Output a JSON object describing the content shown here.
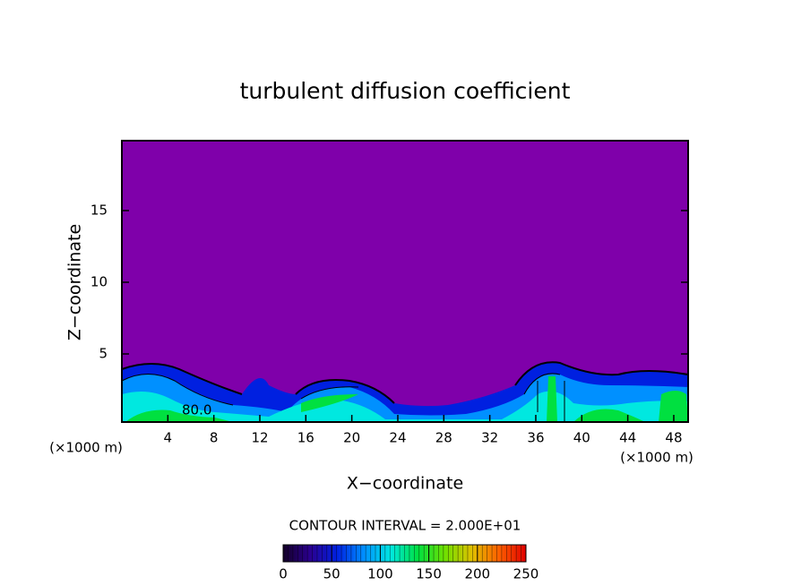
{
  "chart_data": {
    "type": "contour",
    "title": "turbulent diffusion coefficient",
    "xlabel": "X−coordinate",
    "ylabel": "Z−coordinate",
    "x_unit_left": "(×1000 m)",
    "x_unit_right": "(×1000 m)",
    "xlim": [
      0,
      49.25
    ],
    "xticks": [
      4,
      8,
      12,
      16,
      20,
      24,
      28,
      32,
      36,
      40,
      44,
      48
    ],
    "ylim": [
      0.25,
      19.875
    ],
    "yticks": [
      5,
      10,
      15
    ],
    "contour_label": "80.0",
    "contour_interval_text": "CONTOUR INTERVAL = 2.000E+01",
    "colorbar": {
      "lim": [
        0,
        250
      ],
      "ticks": [
        0,
        50,
        100,
        150,
        200,
        250
      ],
      "colors": [
        "#140028",
        "#2a0090",
        "#0020e0",
        "#0090ff",
        "#00e8e0",
        "#00e040",
        "#70e000",
        "#e0c000",
        "#ff6000",
        "#e00000"
      ]
    },
    "background_color": "#7f00aa"
  }
}
